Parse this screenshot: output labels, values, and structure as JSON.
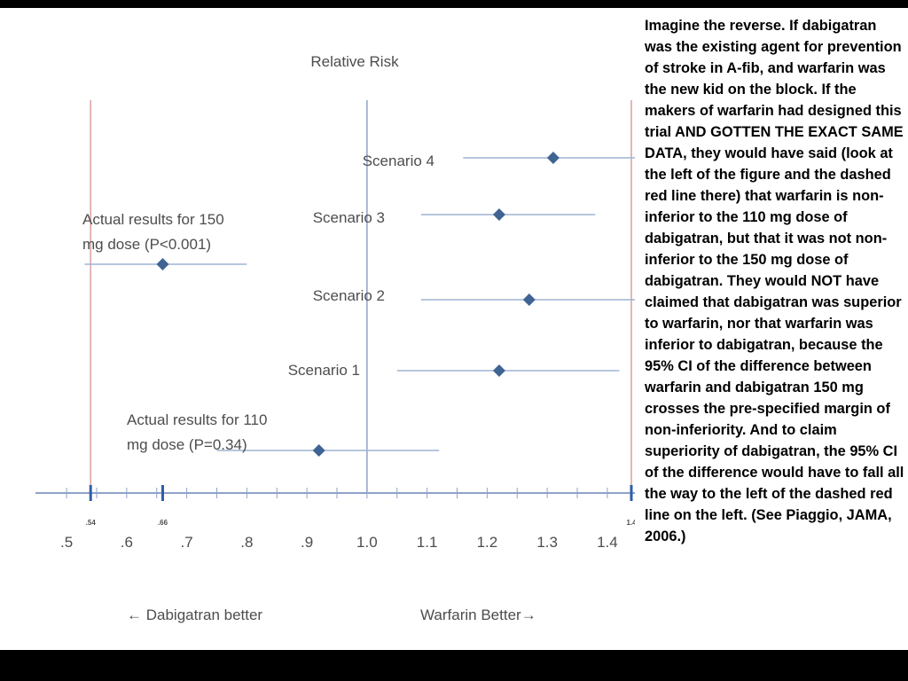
{
  "chart_data": {
    "type": "scatter",
    "title": "Relative Risk",
    "x_axis": {
      "ticks": [
        ".5",
        ".6",
        ".7",
        ".8",
        ".9",
        "1.0",
        "1.1",
        "1.2",
        "1.3",
        "1.4"
      ],
      "tick_values": [
        0.5,
        0.6,
        0.7,
        0.8,
        0.9,
        1.0,
        1.1,
        1.2,
        1.3,
        1.4
      ],
      "range": [
        0.46,
        1.44
      ],
      "small_labels": [
        {
          "label": ".54",
          "value": 0.54
        },
        {
          "label": ".66",
          "value": 0.66
        },
        {
          "label": "1.4",
          "value": 1.44
        }
      ],
      "left_note": "Dabigatran better",
      "right_note": "Warfarin Better",
      "left_arrow": "←",
      "right_arrow": "→"
    },
    "reference_lines": [
      {
        "value": 0.54,
        "color": "#d9a0a0"
      },
      {
        "value": 1.0,
        "color": "#8fa2c8"
      },
      {
        "value": 1.44,
        "color": "#d9a0a0"
      }
    ],
    "series": [
      {
        "label": "Scenario 4",
        "estimate": 1.31,
        "ci": [
          1.16,
          1.46
        ]
      },
      {
        "label": "Scenario 3",
        "estimate": 1.22,
        "ci": [
          1.09,
          1.38
        ]
      },
      {
        "label": "Actual results for 150 mg dose (P<0.001)",
        "label_lines": [
          "Actual results for 150",
          "mg dose (P<0.001)"
        ],
        "estimate": 0.66,
        "ci": [
          0.53,
          0.8
        ]
      },
      {
        "label": "Scenario 2",
        "estimate": 1.27,
        "ci": [
          1.09,
          1.46
        ]
      },
      {
        "label": "Scenario 1",
        "estimate": 1.22,
        "ci": [
          1.05,
          1.42
        ]
      },
      {
        "label": "Actual results for 110 mg dose (P=0.34)",
        "label_lines": [
          "Actual results for 110",
          "mg dose (P=0.34)"
        ],
        "estimate": 0.92,
        "ci": [
          0.75,
          1.12
        ]
      }
    ],
    "marker_color": "#3f6393",
    "ci_color": "#9fb4d4",
    "axis_color": "#8fa2c8"
  },
  "side_note": "Imagine the reverse. If dabigatran was the existing agent for prevention of stroke in A-fib, and warfarin was the new kid on the block. If the makers of warfarin had designed this trial AND GOTTEN THE EXACT SAME DATA, they would have said (look at the left of the figure and the dashed red line there) that warfarin is non-inferior to the 110 mg dose of dabigatran, but that it was not non-inferior to the 150 mg dose of dabigatran. They would NOT have claimed that dabigatran was superior to warfarin, nor that warfarin was inferior to dabigatran, because the 95% CI of the difference between warfarin and dabigatran 150 mg crosses the pre-specified margin of non-inferiority. And to claim superiority of dabigatran, the 95% CI of the difference would have to fall all the way to the left of the dashed red line on the left. (See Piaggio, JAMA, 2006.)"
}
